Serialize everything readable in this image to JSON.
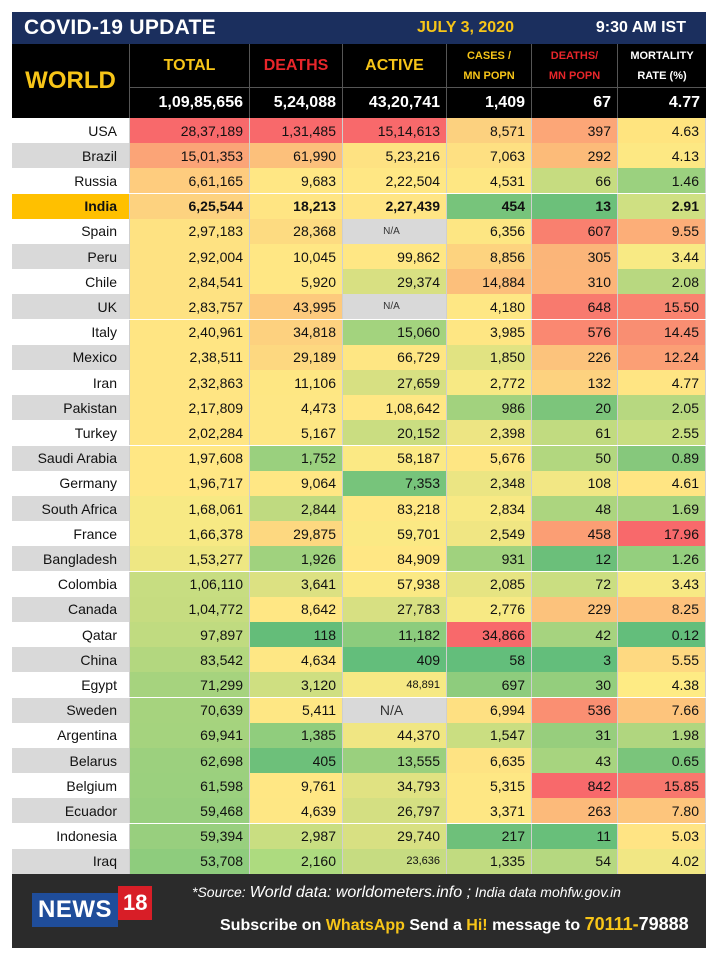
{
  "header": {
    "title": "COVID-19 UPDATE",
    "date": "JULY 3, 2020",
    "time": "9:30 AM IST"
  },
  "columns": {
    "world": "WORLD",
    "total": "TOTAL",
    "deaths": "DEATHS",
    "active": "ACTIVE",
    "cases_line1": "CASES /",
    "cases_line2": "MN POPN",
    "deathsmn_line1": "DEATHS/",
    "deathsmn_line2": "MN POPN",
    "mortality_line1": "MORTALITY",
    "mortality_line2": "RATE (%)"
  },
  "world_totals": [
    "1,09,85,656",
    "5,24,088",
    "43,20,741",
    "1,409",
    "67",
    "4.77"
  ],
  "colors": {
    "header_bg": "#1b2f5e",
    "accent_yellow": "#f7c518",
    "deaths_red": "#e8262a",
    "footer_bg": "#2b2b2b",
    "news_blue": "#1f4d9a",
    "news_red": "#d81e27",
    "india_highlight": "#ffc000"
  },
  "rows": [
    {
      "country": "USA",
      "shade": "#ffffff",
      "values": [
        "28,37,189",
        "1,31,485",
        "15,14,613",
        "8,571",
        "397",
        "4.63"
      ],
      "colors": [
        "#f8696b",
        "#f8696b",
        "#f8696b",
        "#fcd17f",
        "#fca677",
        "#ffe47f"
      ]
    },
    {
      "country": "Brazil",
      "shade": "#d9d9d9",
      "values": [
        "15,01,353",
        "61,990",
        "5,23,216",
        "7,063",
        "292",
        "4.13"
      ],
      "colors": [
        "#fba477",
        "#fcc07b",
        "#fee282",
        "#fee082",
        "#fcbb79",
        "#fde883"
      ]
    },
    {
      "country": "Russia",
      "shade": "#ffffff",
      "values": [
        "6,61,165",
        "9,683",
        "2,22,504",
        "4,531",
        "66",
        "1.46"
      ],
      "colors": [
        "#fecc7e",
        "#ffe784",
        "#ffe784",
        "#fee783",
        "#c6dc80",
        "#9bd17f"
      ]
    },
    {
      "country": "India",
      "shade": "#ffc000",
      "values": [
        "6,25,544",
        "18,213",
        "2,27,439",
        "454",
        "13",
        "2.91"
      ],
      "colors": [
        "#fdd27f",
        "#ffe583",
        "#ffe584",
        "#77c47b",
        "#6cc07a",
        "#cfe082"
      ]
    },
    {
      "country": "Spain",
      "shade": "#ffffff",
      "values": [
        "2,97,183",
        "28,368",
        "N/A",
        "6,356",
        "607",
        "9.55"
      ],
      "colors": [
        "#fee282",
        "#fddb81",
        "#d9d9d9",
        "#fde683",
        "#f9806f",
        "#fcae78"
      ]
    },
    {
      "country": "Peru",
      "shade": "#d9d9d9",
      "values": [
        "2,92,004",
        "10,045",
        "99,862",
        "8,856",
        "305",
        "3.44"
      ],
      "colors": [
        "#fee282",
        "#ffe784",
        "#ffe784",
        "#fdd37f",
        "#fbb579",
        "#f8ea84"
      ]
    },
    {
      "country": "Chile",
      "shade": "#ffffff",
      "values": [
        "2,84,541",
        "5,920",
        "29,374",
        "14,884",
        "310",
        "2.08"
      ],
      "colors": [
        "#fee282",
        "#ffe784",
        "#d8e082",
        "#fcbf7b",
        "#fcb579",
        "#b8d880"
      ]
    },
    {
      "country": "UK",
      "shade": "#d9d9d9",
      "values": [
        "2,83,757",
        "43,995",
        "N/A",
        "4,180",
        "648",
        "15.50"
      ],
      "colors": [
        "#fee282",
        "#fdca7d",
        "#d9d9d9",
        "#fee784",
        "#f87a6e",
        "#f9836f"
      ]
    },
    {
      "country": "Italy",
      "shade": "#ffffff",
      "values": [
        "2,40,961",
        "34,818",
        "15,060",
        "3,985",
        "576",
        "14.45"
      ],
      "colors": [
        "#ffe583",
        "#fdd17f",
        "#a3d37e",
        "#fee683",
        "#fa8871",
        "#f98e72"
      ]
    },
    {
      "country": "Mexico",
      "shade": "#d9d9d9",
      "values": [
        "2,38,511",
        "29,189",
        "66,729",
        "1,850",
        "226",
        "12.24"
      ],
      "colors": [
        "#ffe583",
        "#fdd880",
        "#fee683",
        "#e1e382",
        "#fcc37c",
        "#fb9f75"
      ]
    },
    {
      "country": "Iran",
      "shade": "#ffffff",
      "values": [
        "2,32,863",
        "11,106",
        "27,659",
        "2,772",
        "132",
        "4.77"
      ],
      "colors": [
        "#ffe583",
        "#fee783",
        "#d7e082",
        "#f7e984",
        "#fdd27f",
        "#ffe583"
      ]
    },
    {
      "country": "Pakistan",
      "shade": "#d9d9d9",
      "values": [
        "2,17,809",
        "4,473",
        "1,08,642",
        "986",
        "20",
        "2.05"
      ],
      "colors": [
        "#ffe583",
        "#fee784",
        "#ffe784",
        "#a2d27e",
        "#7cc57b",
        "#b7d880"
      ]
    },
    {
      "country": "Turkey",
      "shade": "#ffffff",
      "values": [
        "2,02,284",
        "5,167",
        "20,152",
        "2,398",
        "61",
        "2.55"
      ],
      "colors": [
        "#ffe583",
        "#fee784",
        "#cadd81",
        "#ede583",
        "#c1db80",
        "#c8de81"
      ]
    },
    {
      "country": "Saudi Arabia",
      "shade": "#d9d9d9",
      "values": [
        "1,97,608",
        "1,752",
        "58,187",
        "5,676",
        "50",
        "0.89"
      ],
      "colors": [
        "#ffe784",
        "#9ad07e",
        "#fbe984",
        "#fee683",
        "#b2d77f",
        "#86c87c"
      ]
    },
    {
      "country": "Germany",
      "shade": "#ffffff",
      "values": [
        "1,96,717",
        "9,064",
        "7,353",
        "2,348",
        "108",
        "4.61"
      ],
      "colors": [
        "#ffe784",
        "#ffe784",
        "#77c47b",
        "#ebe583",
        "#f2e784",
        "#ffe583"
      ]
    },
    {
      "country": "South Africa",
      "shade": "#d9d9d9",
      "values": [
        "1,68,061",
        "2,844",
        "83,218",
        "2,834",
        "48",
        "1.69"
      ],
      "colors": [
        "#f7e984",
        "#bfda80",
        "#ffe784",
        "#f8e984",
        "#acd57f",
        "#a6d37f"
      ]
    },
    {
      "country": "France",
      "shade": "#ffffff",
      "values": [
        "1,66,378",
        "29,875",
        "59,701",
        "2,549",
        "458",
        "17.96"
      ],
      "colors": [
        "#f7e984",
        "#fdd880",
        "#fbe984",
        "#f0e683",
        "#fb9e74",
        "#f8696b"
      ]
    },
    {
      "country": "Bangladesh",
      "shade": "#d9d9d9",
      "values": [
        "1,53,277",
        "1,926",
        "84,909",
        "931",
        "12",
        "1.26"
      ],
      "colors": [
        "#eee783",
        "#a0d27e",
        "#ffe784",
        "#a0d27e",
        "#6bbf7a",
        "#94cf7e"
      ]
    },
    {
      "country": "Colombia",
      "shade": "#ffffff",
      "values": [
        "1,06,110",
        "3,641",
        "57,938",
        "2,085",
        "72",
        "3.43"
      ],
      "colors": [
        "#c7dd81",
        "#dce182",
        "#fbe984",
        "#e6e482",
        "#cade81",
        "#f7e984"
      ]
    },
    {
      "country": "Canada",
      "shade": "#d9d9d9",
      "values": [
        "1,04,772",
        "8,642",
        "27,783",
        "2,776",
        "229",
        "8.25"
      ],
      "colors": [
        "#c6dc80",
        "#ffe784",
        "#d7e082",
        "#f7e984",
        "#fcc27c",
        "#fdc17c"
      ]
    },
    {
      "country": "Qatar",
      "shade": "#ffffff",
      "values": [
        "97,897",
        "118",
        "11,182",
        "34,866",
        "42",
        "0.12"
      ],
      "colors": [
        "#c0db80",
        "#64bd79",
        "#8ccc7d",
        "#f8696b",
        "#a6d37f",
        "#63be7b"
      ]
    },
    {
      "country": "China",
      "shade": "#d9d9d9",
      "values": [
        "83,542",
        "4,634",
        "409",
        "58",
        "3",
        "5.55"
      ],
      "colors": [
        "#b3d77f",
        "#fee784",
        "#63be7b",
        "#63be7b",
        "#63be7b",
        "#fed981"
      ]
    },
    {
      "country": "Egypt",
      "shade": "#ffffff",
      "values": [
        "71,299",
        "3,120",
        "48,891",
        "697",
        "30",
        "4.38"
      ],
      "colors": [
        "#a6d37e",
        "#cfdf81",
        "#f6e984",
        "#8ecc7d",
        "#94ce7d",
        "#feeb84"
      ]
    },
    {
      "country": "Sweden",
      "shade": "#d9d9d9",
      "values": [
        "70,639",
        "5,411",
        "N/A",
        "6,994",
        "536",
        "7.66"
      ],
      "colors": [
        "#a6d37e",
        "#fee784",
        "#d9d9d9",
        "#fee082",
        "#fa8f72",
        "#fdc47c"
      ]
    },
    {
      "country": "Argentina",
      "shade": "#ffffff",
      "values": [
        "69,941",
        "1,385",
        "44,370",
        "1,547",
        "31",
        "1.98"
      ],
      "colors": [
        "#a5d37e",
        "#90cd7d",
        "#f0e683",
        "#cade81",
        "#97ce7d",
        "#b0d67f"
      ]
    },
    {
      "country": "Belarus",
      "shade": "#d9d9d9",
      "values": [
        "62,698",
        "405",
        "13,555",
        "6,635",
        "43",
        "0.65"
      ],
      "colors": [
        "#9cd07e",
        "#6dc07a",
        "#9ad07e",
        "#fee383",
        "#a7d47f",
        "#7ac57b"
      ]
    },
    {
      "country": "Belgium",
      "shade": "#ffffff",
      "values": [
        "61,598",
        "9,761",
        "34,793",
        "5,315",
        "842",
        "15.85"
      ],
      "colors": [
        "#9bd07e",
        "#ffe784",
        "#e0e282",
        "#fee784",
        "#f8696b",
        "#f8776d"
      ]
    },
    {
      "country": "Ecuador",
      "shade": "#d9d9d9",
      "values": [
        "59,468",
        "4,639",
        "26,797",
        "3,371",
        "263",
        "7.80"
      ],
      "colors": [
        "#98cf7e",
        "#fee784",
        "#d4df82",
        "#fee784",
        "#fcba7a",
        "#fdc57c"
      ]
    },
    {
      "country": "Indonesia",
      "shade": "#ffffff",
      "values": [
        "59,394",
        "2,987",
        "29,740",
        "217",
        "11",
        "5.03"
      ],
      "colors": [
        "#98cf7e",
        "#c9de81",
        "#d8e082",
        "#6ec07a",
        "#68bf7a",
        "#ffe484"
      ]
    },
    {
      "country": "Iraq",
      "shade": "#d9d9d9",
      "values": [
        "53,708",
        "2,160",
        "23,636",
        "1,335",
        "54",
        "4.02"
      ],
      "colors": [
        "#8ecc7d",
        "#addb7f",
        "#c6dc81",
        "#c1db80",
        "#b5d880",
        "#f1e784"
      ]
    }
  ],
  "footer": {
    "logo_news": "NEWS",
    "logo_num": "18",
    "source_prefix": "*Source:",
    "source_world": "World data: worldometers.info ;",
    "source_india": "India data mohfw.gov.in",
    "sub_text1": "Subscribe on",
    "sub_whatsapp": "WhatsApp",
    "sub_text2": "Send a",
    "sub_hi": "Hi!",
    "sub_text3": "message to",
    "sub_num1": "70111-",
    "sub_num2": "79888"
  }
}
